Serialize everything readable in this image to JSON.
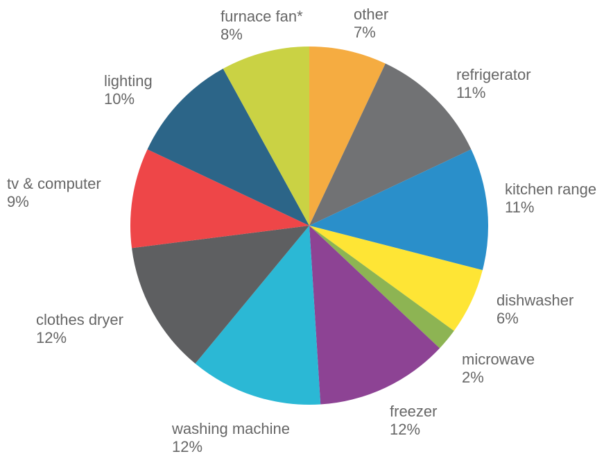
{
  "chart_data": {
    "type": "pie",
    "title": "",
    "slices": [
      {
        "label": "other",
        "pct_text": "7%",
        "value": 7,
        "color": "#F5AC41"
      },
      {
        "label": "refrigerator",
        "pct_text": "11%",
        "value": 11,
        "color": "#717274"
      },
      {
        "label": "kitchen range",
        "pct_text": "11%",
        "value": 11,
        "color": "#2A8FCA"
      },
      {
        "label": "dishwasher",
        "pct_text": "6%",
        "value": 6,
        "color": "#FEE535"
      },
      {
        "label": "microwave",
        "pct_text": "2%",
        "value": 2,
        "color": "#8DB453"
      },
      {
        "label": "freezer",
        "pct_text": "12%",
        "value": 12,
        "color": "#8D4394"
      },
      {
        "label": "washing machine",
        "pct_text": "12%",
        "value": 12,
        "color": "#2BB8D5"
      },
      {
        "label": "clothes dryer",
        "pct_text": "12%",
        "value": 12,
        "color": "#5E5F61"
      },
      {
        "label": "tv & computer",
        "pct_text": "9%",
        "value": 9,
        "color": "#EE4648"
      },
      {
        "label": "lighting",
        "pct_text": "10%",
        "value": 10,
        "color": "#2C6588"
      },
      {
        "label": "furnace fan*",
        "pct_text": "8%",
        "value": 8,
        "color": "#CAD244"
      }
    ]
  }
}
